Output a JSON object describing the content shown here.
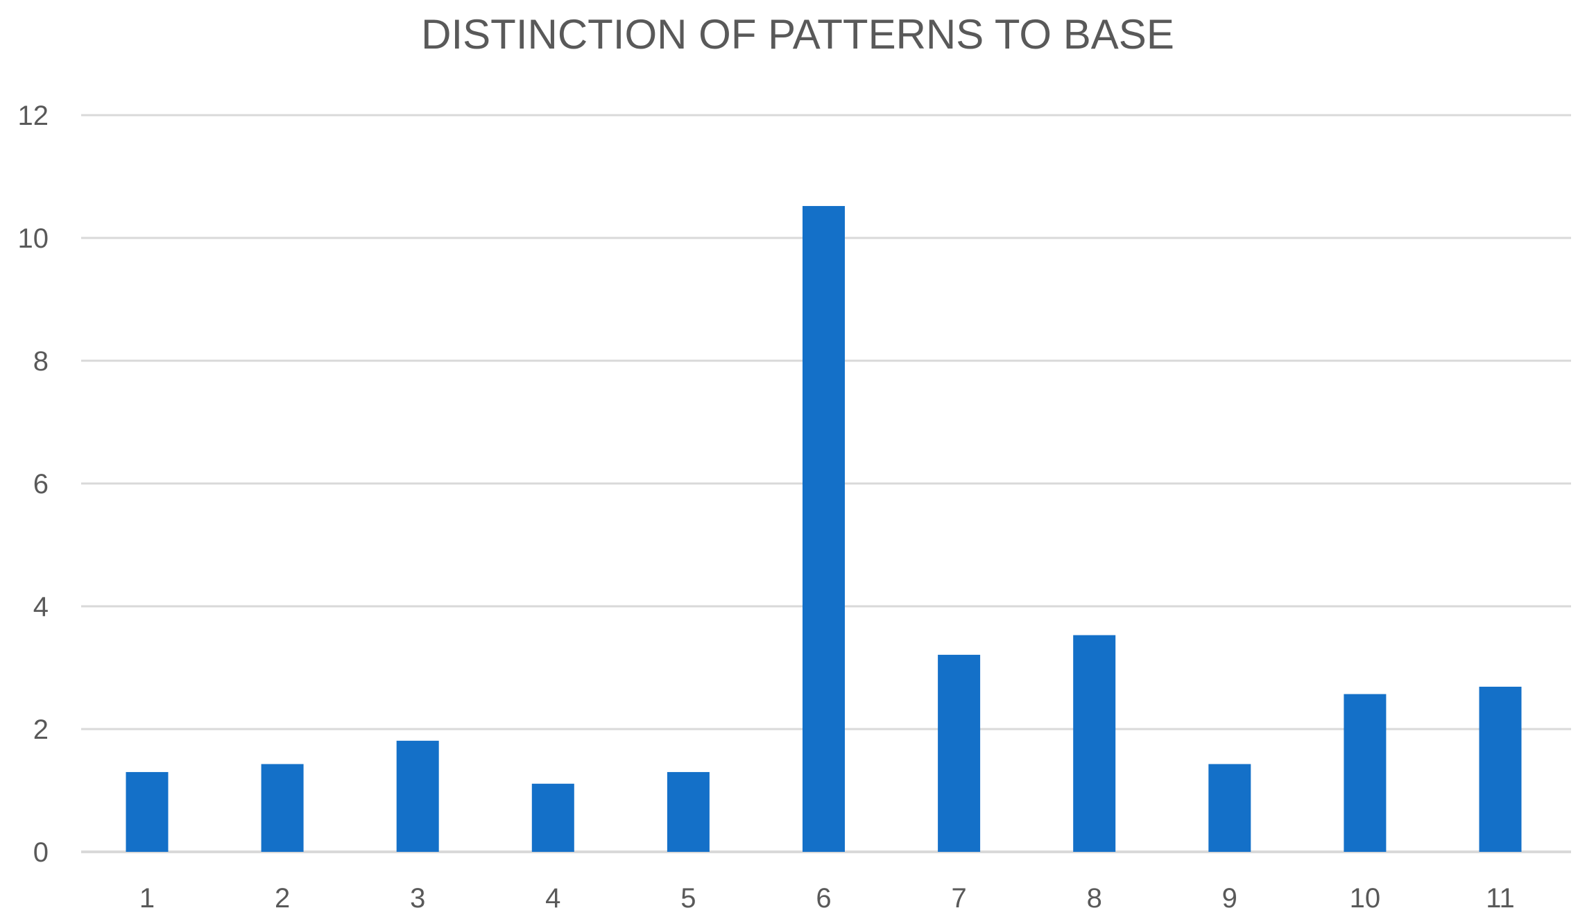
{
  "chart_data": {
    "type": "bar",
    "title": "DISTINCTION OF PATTERNS TO BASE",
    "xlabel": "",
    "ylabel": "",
    "categories": [
      "1",
      "2",
      "3",
      "4",
      "5",
      "6",
      "7",
      "8",
      "9",
      "10",
      "11"
    ],
    "values": [
      1.3,
      1.43,
      1.81,
      1.11,
      1.3,
      10.52,
      3.21,
      3.53,
      1.43,
      2.57,
      2.69
    ],
    "ylim": [
      0,
      12
    ],
    "yticks": [
      "0",
      "2",
      "4",
      "6",
      "8",
      "10",
      "12"
    ],
    "grid": true,
    "legend": "none",
    "colors": {
      "bar": "#1470C8",
      "grid": "#D9D9D9",
      "text": "#595959"
    }
  }
}
